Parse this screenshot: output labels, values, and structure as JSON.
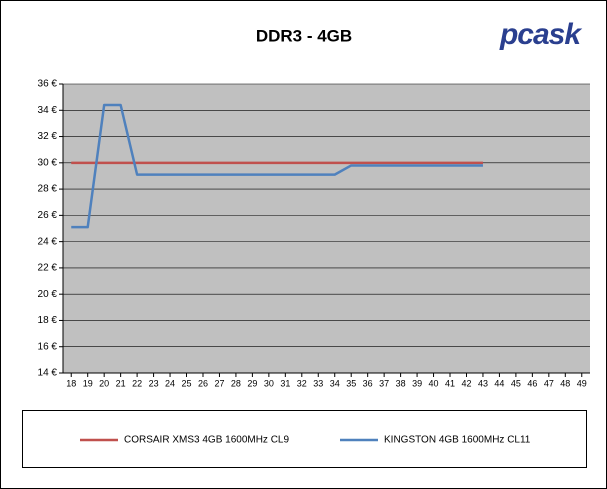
{
  "chart_data": {
    "type": "line",
    "title": "DDR3 - 4GB",
    "logo": "pcask",
    "x": [
      18,
      19,
      20,
      21,
      22,
      23,
      24,
      25,
      26,
      27,
      28,
      29,
      30,
      31,
      32,
      33,
      34,
      35,
      36,
      37,
      38,
      39,
      40,
      41,
      42,
      43
    ],
    "xlim": [
      17.5,
      49.5
    ],
    "xticks": [
      18,
      19,
      20,
      21,
      22,
      23,
      24,
      25,
      26,
      27,
      28,
      29,
      30,
      31,
      32,
      33,
      34,
      35,
      36,
      37,
      38,
      39,
      40,
      41,
      42,
      43,
      44,
      45,
      46,
      47,
      48,
      49
    ],
    "ylim": [
      14,
      36
    ],
    "yticks": [
      {
        "value": 14,
        "label": "14 €"
      },
      {
        "value": 16,
        "label": "16 €"
      },
      {
        "value": 18,
        "label": "18 €"
      },
      {
        "value": 20,
        "label": "20 €"
      },
      {
        "value": 22,
        "label": "22 €"
      },
      {
        "value": 24,
        "label": "24 €"
      },
      {
        "value": 26,
        "label": "26 €"
      },
      {
        "value": 28,
        "label": "28 €"
      },
      {
        "value": 30,
        "label": "30 €"
      },
      {
        "value": 32,
        "label": "32 €"
      },
      {
        "value": 34,
        "label": "34 €"
      },
      {
        "value": 36,
        "label": "36 €"
      }
    ],
    "grid": true,
    "series": [
      {
        "name": "CORSAIR XMS3 4GB 1600MHz CL9",
        "color": "#c0504d",
        "values": [
          30,
          30,
          30,
          30,
          30,
          30,
          30,
          30,
          30,
          30,
          30,
          30,
          30,
          30,
          30,
          30,
          30,
          30,
          30,
          30,
          30,
          30,
          30,
          30,
          30,
          30
        ]
      },
      {
        "name": "KINGSTON 4GB 1600MHz CL11",
        "color": "#4f81bd",
        "values": [
          25.1,
          25.1,
          34.4,
          34.4,
          29.1,
          29.1,
          29.1,
          29.1,
          29.1,
          29.1,
          29.1,
          29.1,
          29.1,
          29.1,
          29.1,
          29.1,
          29.1,
          29.8,
          29.8,
          29.8,
          29.8,
          29.8,
          29.8,
          29.8,
          29.8,
          29.8
        ]
      }
    ]
  }
}
